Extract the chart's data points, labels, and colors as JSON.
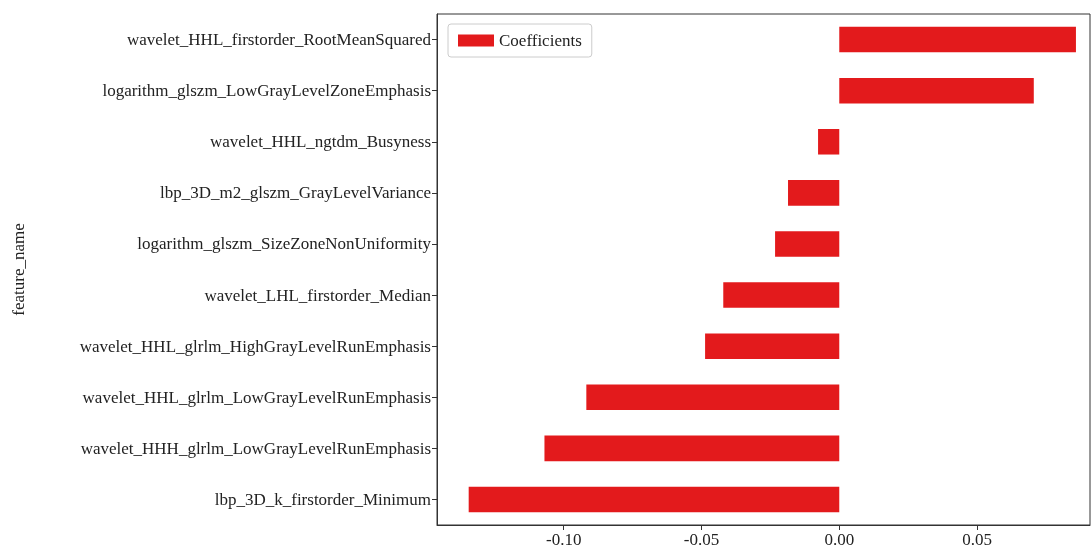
{
  "chart_data": {
    "type": "bar",
    "orientation": "horizontal",
    "ylabel": "feature_name",
    "categories": [
      "wavelet_HHL_firstorder_RootMeanSquared",
      "logarithm_glszm_LowGrayLevelZoneEmphasis",
      "wavelet_HHL_ngtdm_Busyness",
      "lbp_3D_m2_glszm_GrayLevelVariance",
      "logarithm_glszm_SizeZoneNonUniformity",
      "wavelet_LHL_firstorder_Median",
      "wavelet_HHL_glrlm_HighGrayLevelRunEmphasis",
      "wavelet_HHL_glrlm_LowGrayLevelRunEmphasis",
      "wavelet_HHH_glrlm_LowGrayLevelRunEmphasis",
      "lbp_3D_k_firstorder_Minimum"
    ],
    "series": [
      {
        "name": "Coefficients",
        "color": "#e31a1c",
        "values": [
          0.0859,
          0.0706,
          -0.0077,
          -0.0186,
          -0.0233,
          -0.0421,
          -0.0487,
          -0.0918,
          -0.107,
          -0.1345
        ]
      }
    ],
    "xlim": [
      -0.146,
      0.091
    ],
    "xticks": [
      {
        "value": -0.1,
        "label": "-0.10"
      },
      {
        "value": -0.05,
        "label": "-0.05"
      },
      {
        "value": 0,
        "label": "0.00"
      },
      {
        "value": 0.05,
        "label": "0.05"
      }
    ],
    "grid": false,
    "legend": "top left"
  }
}
